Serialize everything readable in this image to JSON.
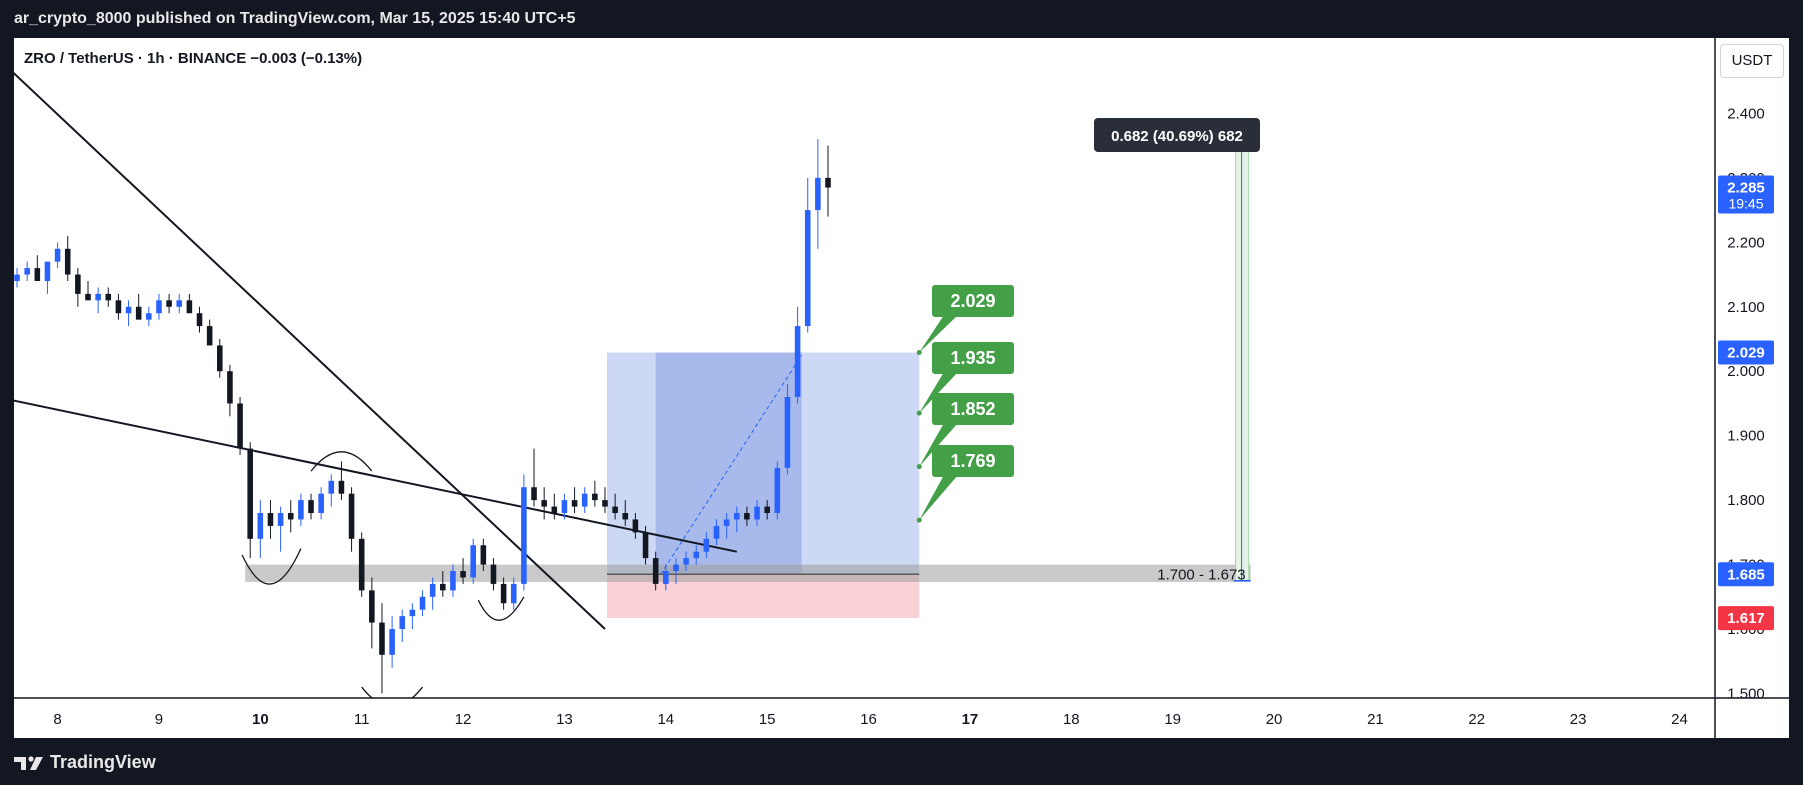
{
  "header": {
    "published": "ar_crypto_8000 published on TradingView.com, Mar 15, 2025 15:40 UTC+5"
  },
  "chart_title": "ZRO / TetherUS · 1h · BINANCE  −0.003 (−0.13%)",
  "currency_button": "USDT",
  "footer": {
    "brand": "TradingView"
  },
  "colors": {
    "up": "#2962ff",
    "down": "#131722",
    "target_green": "#43a047",
    "zone_blue": "#b8c8f0",
    "zone_blue_dark": "#8fa6e6",
    "stop_red": "#f8c6cc",
    "price_blue": "#2962ff",
    "price_red": "#f23645"
  },
  "chart_data": {
    "type": "candlestick",
    "symbol": "ZRO / TetherUS",
    "interval": "1h",
    "exchange": "BINANCE",
    "change": "−0.003 (−0.13%)",
    "x_ticks": [
      "8",
      "9",
      "10",
      "11",
      "12",
      "13",
      "14",
      "15",
      "16",
      "17",
      "18",
      "19",
      "20",
      "21",
      "22",
      "23",
      "24"
    ],
    "y_ticks": [
      "1.500",
      "1.600",
      "1.700",
      "1.800",
      "1.900",
      "2.000",
      "2.100",
      "2.200",
      "2.300",
      "2.400"
    ],
    "ylim": [
      1.493,
      2.517
    ],
    "x_range_days": [
      7.57,
      24.35
    ],
    "candles": [
      [
        7.6,
        2.14,
        2.16,
        2.13,
        2.15
      ],
      [
        7.7,
        2.15,
        2.17,
        2.14,
        2.16
      ],
      [
        7.8,
        2.16,
        2.18,
        2.15,
        2.14
      ],
      [
        7.9,
        2.14,
        2.16,
        2.12,
        2.17
      ],
      [
        8.0,
        2.17,
        2.2,
        2.16,
        2.19
      ],
      [
        8.1,
        2.19,
        2.21,
        2.14,
        2.15
      ],
      [
        8.2,
        2.15,
        2.16,
        2.1,
        2.12
      ],
      [
        8.3,
        2.12,
        2.14,
        2.11,
        2.11
      ],
      [
        8.4,
        2.11,
        2.13,
        2.09,
        2.12
      ],
      [
        8.5,
        2.12,
        2.13,
        2.1,
        2.11
      ],
      [
        8.6,
        2.11,
        2.12,
        2.08,
        2.09
      ],
      [
        8.7,
        2.09,
        2.11,
        2.07,
        2.1
      ],
      [
        8.8,
        2.1,
        2.12,
        2.08,
        2.08
      ],
      [
        8.9,
        2.08,
        2.1,
        2.07,
        2.09
      ],
      [
        9.0,
        2.09,
        2.12,
        2.08,
        2.11
      ],
      [
        9.1,
        2.11,
        2.12,
        2.09,
        2.1
      ],
      [
        9.2,
        2.1,
        2.12,
        2.09,
        2.11
      ],
      [
        9.3,
        2.11,
        2.12,
        2.09,
        2.09
      ],
      [
        9.4,
        2.09,
        2.1,
        2.06,
        2.07
      ],
      [
        9.5,
        2.07,
        2.08,
        2.04,
        2.04
      ],
      [
        9.6,
        2.04,
        2.05,
        1.99,
        2.0
      ],
      [
        9.7,
        2.0,
        2.01,
        1.93,
        1.95
      ],
      [
        9.8,
        1.95,
        1.96,
        1.87,
        1.88
      ],
      [
        9.9,
        1.88,
        1.89,
        1.71,
        1.74
      ],
      [
        10.0,
        1.74,
        1.8,
        1.71,
        1.78
      ],
      [
        10.1,
        1.78,
        1.8,
        1.74,
        1.76
      ],
      [
        10.2,
        1.76,
        1.79,
        1.72,
        1.78
      ],
      [
        10.3,
        1.78,
        1.8,
        1.75,
        1.77
      ],
      [
        10.4,
        1.77,
        1.81,
        1.76,
        1.8
      ],
      [
        10.5,
        1.8,
        1.81,
        1.77,
        1.78
      ],
      [
        10.6,
        1.78,
        1.82,
        1.77,
        1.81
      ],
      [
        10.7,
        1.81,
        1.84,
        1.79,
        1.83
      ],
      [
        10.8,
        1.83,
        1.86,
        1.8,
        1.81
      ],
      [
        10.9,
        1.81,
        1.82,
        1.72,
        1.74
      ],
      [
        11.0,
        1.74,
        1.75,
        1.65,
        1.66
      ],
      [
        11.1,
        1.66,
        1.68,
        1.57,
        1.61
      ],
      [
        11.2,
        1.61,
        1.64,
        1.5,
        1.56
      ],
      [
        11.3,
        1.56,
        1.62,
        1.54,
        1.6
      ],
      [
        11.4,
        1.6,
        1.63,
        1.58,
        1.62
      ],
      [
        11.5,
        1.62,
        1.64,
        1.6,
        1.63
      ],
      [
        11.6,
        1.63,
        1.66,
        1.62,
        1.65
      ],
      [
        11.7,
        1.65,
        1.68,
        1.63,
        1.67
      ],
      [
        11.8,
        1.67,
        1.69,
        1.65,
        1.66
      ],
      [
        11.9,
        1.66,
        1.7,
        1.65,
        1.69
      ],
      [
        12.0,
        1.69,
        1.71,
        1.67,
        1.68
      ],
      [
        12.1,
        1.68,
        1.74,
        1.67,
        1.73
      ],
      [
        12.2,
        1.73,
        1.74,
        1.69,
        1.7
      ],
      [
        12.3,
        1.7,
        1.71,
        1.66,
        1.67
      ],
      [
        12.4,
        1.67,
        1.68,
        1.63,
        1.64
      ],
      [
        12.5,
        1.64,
        1.68,
        1.63,
        1.67
      ],
      [
        12.6,
        1.67,
        1.84,
        1.66,
        1.82
      ],
      [
        12.7,
        1.82,
        1.88,
        1.79,
        1.8
      ],
      [
        12.8,
        1.8,
        1.82,
        1.77,
        1.79
      ],
      [
        12.9,
        1.79,
        1.81,
        1.77,
        1.78
      ],
      [
        13.0,
        1.78,
        1.81,
        1.77,
        1.8
      ],
      [
        13.1,
        1.8,
        1.82,
        1.78,
        1.79
      ],
      [
        13.2,
        1.79,
        1.82,
        1.78,
        1.81
      ],
      [
        13.3,
        1.81,
        1.83,
        1.79,
        1.8
      ],
      [
        13.4,
        1.8,
        1.82,
        1.78,
        1.79
      ],
      [
        13.5,
        1.79,
        1.81,
        1.77,
        1.78
      ],
      [
        13.6,
        1.78,
        1.8,
        1.76,
        1.77
      ],
      [
        13.7,
        1.77,
        1.78,
        1.74,
        1.75
      ],
      [
        13.8,
        1.75,
        1.76,
        1.7,
        1.71
      ],
      [
        13.9,
        1.71,
        1.72,
        1.66,
        1.67
      ],
      [
        14.0,
        1.67,
        1.7,
        1.66,
        1.69
      ],
      [
        14.1,
        1.69,
        1.71,
        1.67,
        1.7
      ],
      [
        14.2,
        1.7,
        1.72,
        1.69,
        1.71
      ],
      [
        14.3,
        1.71,
        1.73,
        1.7,
        1.72
      ],
      [
        14.4,
        1.72,
        1.75,
        1.71,
        1.74
      ],
      [
        14.5,
        1.74,
        1.77,
        1.73,
        1.76
      ],
      [
        14.6,
        1.76,
        1.78,
        1.74,
        1.77
      ],
      [
        14.7,
        1.77,
        1.79,
        1.75,
        1.78
      ],
      [
        14.8,
        1.78,
        1.79,
        1.76,
        1.77
      ],
      [
        14.9,
        1.77,
        1.8,
        1.76,
        1.79
      ],
      [
        15.0,
        1.79,
        1.8,
        1.77,
        1.78
      ],
      [
        15.1,
        1.78,
        1.86,
        1.77,
        1.85
      ],
      [
        15.2,
        1.85,
        1.98,
        1.84,
        1.96
      ],
      [
        15.3,
        1.96,
        2.1,
        1.95,
        2.07
      ],
      [
        15.4,
        2.07,
        2.3,
        2.06,
        2.25
      ],
      [
        15.5,
        2.25,
        2.36,
        2.19,
        2.3
      ],
      [
        15.6,
        2.3,
        2.35,
        2.24,
        2.285
      ]
    ],
    "annotations": {
      "targets": [
        "2.029",
        "1.935",
        "1.852",
        "1.769"
      ],
      "support_zone_label": "1.700 - 1.673",
      "measure_label": "0.682 (40.69%) 682",
      "price_labels": [
        {
          "price": 2.285,
          "text": "2.285",
          "sub": "19:45",
          "color": "#2962ff"
        },
        {
          "price": 2.029,
          "text": "2.029",
          "color": "#2962ff"
        },
        {
          "price": 1.685,
          "text": "1.685",
          "color": "#2962ff"
        },
        {
          "price": 1.617,
          "text": "1.617",
          "color": "#f23645"
        }
      ]
    }
  }
}
